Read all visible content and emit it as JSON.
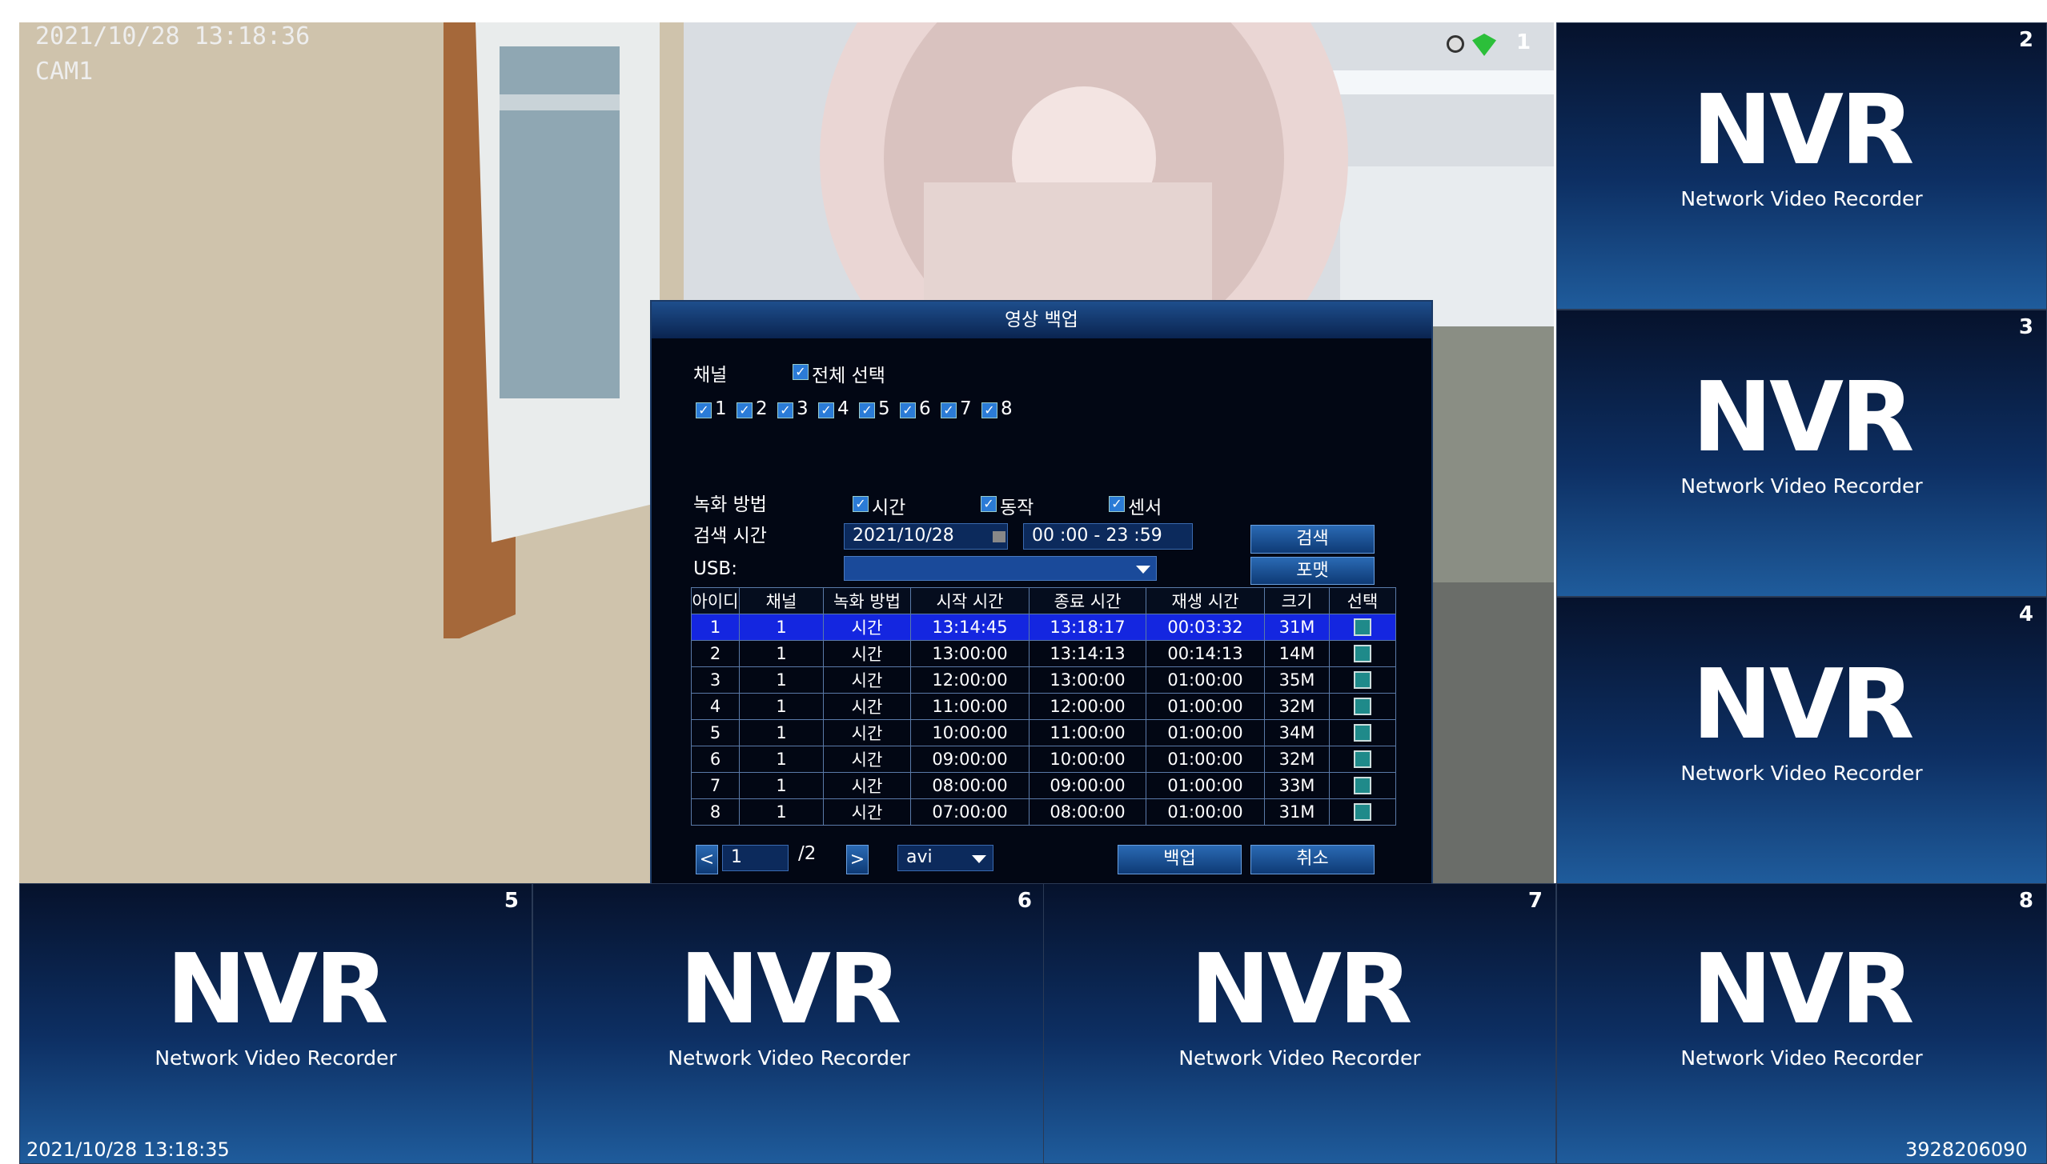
{
  "camera": {
    "timestamp": "2021/10/28 13:18:36",
    "name": "CAM1",
    "channel": "1"
  },
  "tiles": [
    {
      "channel": "2",
      "logo": "NVR",
      "subtitle": "Network Video Recorder"
    },
    {
      "channel": "3",
      "logo": "NVR",
      "subtitle": "Network Video Recorder"
    },
    {
      "channel": "4",
      "logo": "NVR",
      "subtitle": "Network Video Recorder"
    },
    {
      "channel": "5",
      "logo": "NVR",
      "subtitle": "Network Video Recorder"
    },
    {
      "channel": "6",
      "logo": "NVR",
      "subtitle": "Network Video Recorder"
    },
    {
      "channel": "7",
      "logo": "NVR",
      "subtitle": "Network Video Recorder"
    },
    {
      "channel": "8",
      "logo": "NVR",
      "subtitle": "Network Video Recorder"
    }
  ],
  "status": {
    "timestamp": "2021/10/28 13:18:35",
    "serial": "3928206090"
  },
  "dialog": {
    "title": "영상 백업",
    "channel_label": "채널",
    "select_all": "전체 선택",
    "channels": [
      "1",
      "2",
      "3",
      "4",
      "5",
      "6",
      "7",
      "8"
    ],
    "record_method_label": "녹화 방법",
    "methods": [
      "시간",
      "동작",
      "센서"
    ],
    "search_time_label": "검색 시간",
    "date": "2021/10/28",
    "time_range": "00 :00 - 23 :59",
    "search_button": "검색",
    "usb_label": "USB:",
    "format_button": "포맷",
    "table": {
      "headers": [
        "아이디",
        "채널",
        "녹화 방법",
        "시작 시간",
        "종료 시간",
        "재생 시간",
        "크기",
        "선택"
      ],
      "rows": [
        [
          "1",
          "1",
          "시간",
          "13:14:45",
          "13:18:17",
          "00:03:32",
          "31M"
        ],
        [
          "2",
          "1",
          "시간",
          "13:00:00",
          "13:14:13",
          "00:14:13",
          "14M"
        ],
        [
          "3",
          "1",
          "시간",
          "12:00:00",
          "13:00:00",
          "01:00:00",
          "35M"
        ],
        [
          "4",
          "1",
          "시간",
          "11:00:00",
          "12:00:00",
          "01:00:00",
          "32M"
        ],
        [
          "5",
          "1",
          "시간",
          "10:00:00",
          "11:00:00",
          "01:00:00",
          "34M"
        ],
        [
          "6",
          "1",
          "시간",
          "09:00:00",
          "10:00:00",
          "01:00:00",
          "32M"
        ],
        [
          "7",
          "1",
          "시간",
          "08:00:00",
          "09:00:00",
          "01:00:00",
          "33M"
        ],
        [
          "8",
          "1",
          "시간",
          "07:00:00",
          "08:00:00",
          "01:00:00",
          "31M"
        ]
      ]
    },
    "page_current": "1",
    "page_total": "/2",
    "file_format": "avi",
    "backup_button": "백업",
    "cancel_button": "취소"
  }
}
